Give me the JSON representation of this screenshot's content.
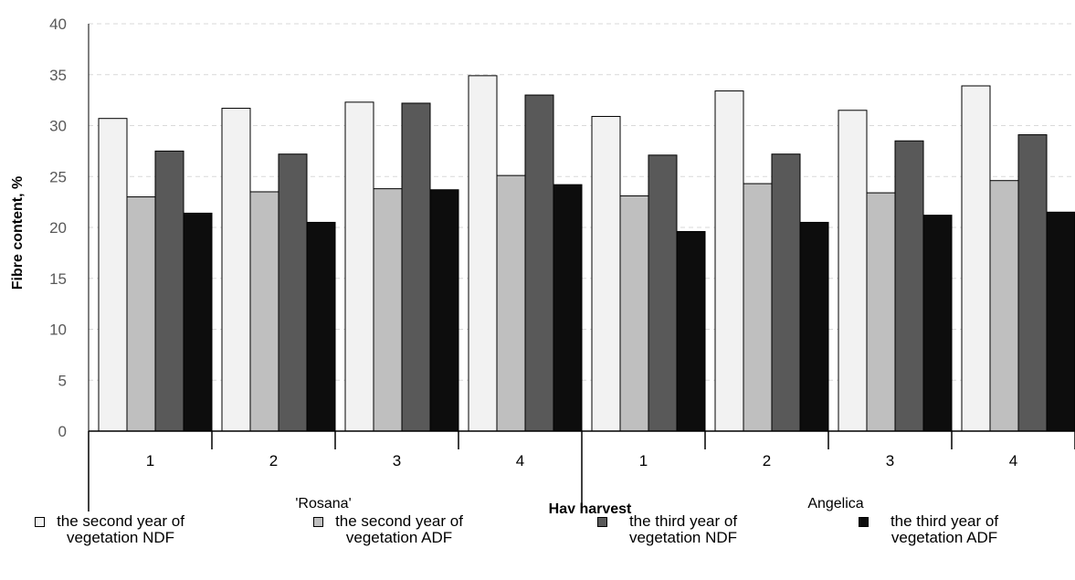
{
  "chart_data": {
    "type": "bar",
    "ylabel": "Fibre content, %",
    "xlabel": "Hay harvest",
    "ylim": [
      0,
      40
    ],
    "yticks": [
      "0",
      "5",
      "10",
      "15",
      "20",
      "25",
      "30",
      "35",
      "40"
    ],
    "grid": true,
    "legend_position": "bottom",
    "groups": [
      "'Rosana'",
      "Angelica"
    ],
    "categories": [
      "1",
      "2",
      "3",
      "4",
      "1",
      "2",
      "3",
      "4"
    ],
    "series": [
      {
        "name": "the second year of vegetation NDF",
        "color": "#f2f2f2",
        "values": [
          30.7,
          31.7,
          32.3,
          34.9,
          30.9,
          33.4,
          31.5,
          33.9
        ]
      },
      {
        "name": "the second year of vegetation ADF",
        "color": "#bfbfbf",
        "values": [
          23.0,
          23.5,
          23.8,
          25.1,
          23.1,
          24.3,
          23.4,
          24.6
        ]
      },
      {
        "name": "the third year of vegetation NDF",
        "color": "#595959",
        "values": [
          27.5,
          27.2,
          32.2,
          33.0,
          27.1,
          27.2,
          28.5,
          29.1
        ]
      },
      {
        "name": "the third year of vegetation ADF",
        "color": "#0d0d0d",
        "values": [
          21.4,
          20.5,
          23.7,
          24.2,
          19.6,
          20.5,
          21.2,
          21.5
        ]
      }
    ]
  }
}
